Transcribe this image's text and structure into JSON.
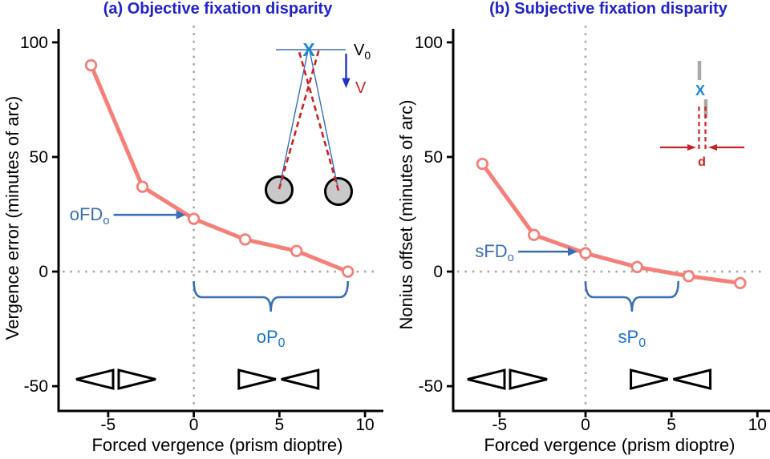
{
  "colors": {
    "title_blue": "#2222CC",
    "series_salmon": "#F5807A",
    "annotation_steel_blue": "#3A6EB5",
    "label_bright_blue": "#1874CD",
    "accent_red": "#CC2222",
    "grid_gray": "#A8A8A8",
    "axis_black": "#000000",
    "eye_fill_gray": "#C9C9C9",
    "nonius_gray": "#A9A9A9",
    "arrow_blue": "#2233CC",
    "cross_blue": "#1E86D6"
  },
  "chart_data": [
    {
      "panel": "a",
      "type": "line",
      "title": "(a) Objective fixation disparity",
      "xlabel": "Forced vergence (prism dioptre)",
      "ylabel": "Vergence error (minutes of arc)",
      "x": [
        -6,
        -3,
        0,
        3,
        6,
        9
      ],
      "values": [
        90,
        37,
        23,
        14,
        9,
        0
      ],
      "xticks": [
        -5,
        0,
        5,
        10
      ],
      "yticks": [
        100,
        50,
        0,
        -50
      ],
      "xlim": [
        -7.9,
        10.7
      ],
      "ylim": [
        -60.8,
        105.2
      ],
      "grid": "dotted zero lines only",
      "legend": "none",
      "annotations": {
        "fd": {
          "label": "oFD",
          "sub": "o",
          "points_to_x": 0
        },
        "p": {
          "label": "oP",
          "sub": "0",
          "span": [
            0,
            9
          ]
        },
        "inset": {
          "kind": "binocular-vergence-diagram",
          "target_label": "V",
          "target_sub": "0",
          "response_label": "V",
          "cross_label": "X"
        }
      }
    },
    {
      "panel": "b",
      "type": "line",
      "title": "(b) Subjective fixation disparity",
      "xlabel": "Forced vergence (prism dioptre)",
      "ylabel": "Nonius offset (minutes of arc)",
      "x": [
        -6,
        -3,
        0,
        3,
        6,
        9
      ],
      "values": [
        47,
        16,
        8,
        2,
        -2,
        -5
      ],
      "xticks": [
        -5,
        0,
        5,
        10
      ],
      "yticks": [
        100,
        50,
        0,
        -50
      ],
      "xlim": [
        -7.7,
        10.5
      ],
      "ylim": [
        -60.8,
        105.2
      ],
      "grid": "dotted zero lines only",
      "legend": "none",
      "annotations": {
        "fd": {
          "label": "sFD",
          "sub": "o",
          "points_to_x": 0
        },
        "p": {
          "label": "sP",
          "sub": "0",
          "span": [
            0,
            5.4
          ]
        },
        "inset": {
          "kind": "nonius-lines-diagram",
          "cross_label": "X",
          "offset_label": "d"
        }
      }
    }
  ]
}
